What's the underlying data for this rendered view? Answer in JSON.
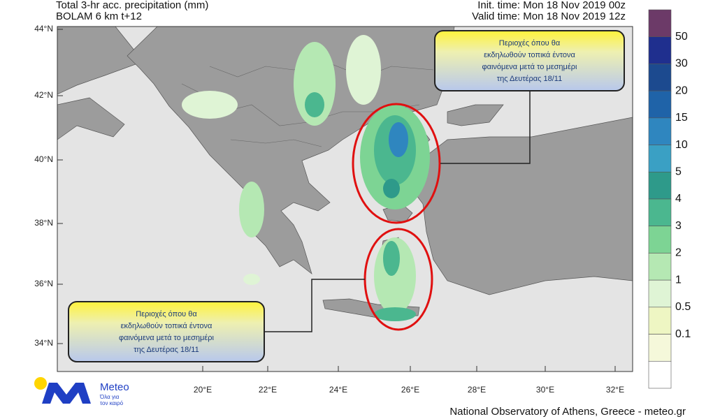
{
  "header": {
    "title": "Total 3-hr acc. precipitation (mm)",
    "model": "BOLAM 6 km t+12",
    "init_time": "Init. time: Mon 18 Nov 2019 00z",
    "valid_time": "Valid time: Mon 18 Nov 2019 12z"
  },
  "map": {
    "lat_labels": [
      "44°N",
      "42°N",
      "40°N",
      "38°N",
      "36°N",
      "34°N"
    ],
    "lon_labels": [
      "20°E",
      "22°E",
      "24°E",
      "26°E",
      "28°E",
      "30°E",
      "32°E"
    ]
  },
  "legend": {
    "labels": [
      "50",
      "30",
      "20",
      "15",
      "10",
      "5",
      "4",
      "3",
      "2",
      "1",
      "0.5",
      "0.1"
    ],
    "colors": [
      "#6c3a68",
      "#1f2f8e",
      "#1c4a8f",
      "#1f63a8",
      "#2f86bf",
      "#3aa0c4",
      "#2e9a8a",
      "#4bb78f",
      "#7dd494",
      "#b5e8b3",
      "#dff4d5",
      "#eef6c3",
      "#f5f8da",
      "#ffffff"
    ]
  },
  "callouts": [
    {
      "lines": [
        "Περιοχές όπου θα",
        "εκδηλωθούν τοπικά έντονα",
        "φαινόμενα μετά το μεσημέρι",
        "της Δευτέρας 18/11"
      ]
    },
    {
      "lines": [
        "Περιοχές όπου θα",
        "εκδηλωθούν τοπικά έντονα",
        "φαινόμενα μετά το μεσημέρι",
        "της Δευτέρας 18/11"
      ]
    }
  ],
  "logo": {
    "name": "Meteo",
    "tagline": [
      "Όλα για",
      "τον καιρό"
    ]
  },
  "footer": "National Observatory of Athens, Greece - meteo.gr"
}
